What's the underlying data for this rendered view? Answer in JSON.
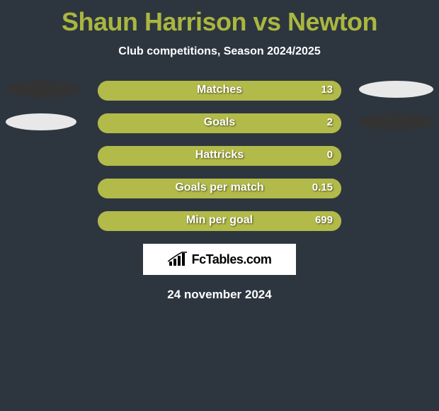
{
  "title": "Shaun Harrison vs Newton",
  "subtitle": "Club competitions, Season 2024/2025",
  "colors": {
    "background": "#2d363f",
    "accent": "#aab63f",
    "white": "#ffffff",
    "oval_left_1": "#333333",
    "oval_left_2": "#e8e8e8",
    "oval_right_1": "#e8e8e8",
    "oval_right_2": "#333333",
    "bar_left": "#9aa334",
    "bar_right": "#b2ba49"
  },
  "ovals": {
    "row0_left_width": 105,
    "row0_right_width": 105,
    "row1_left_width": 100,
    "row1_right_width": 105
  },
  "rows": [
    {
      "label": "Matches",
      "left_pct": 0,
      "right_pct": 100,
      "value_left": "",
      "value_right": "13",
      "show_ovals": true,
      "left_oval_color": "#333333",
      "right_oval_color": "#e8e8e8"
    },
    {
      "label": "Goals",
      "left_pct": 0,
      "right_pct": 100,
      "value_left": "",
      "value_right": "2",
      "show_ovals": true,
      "left_oval_color": "#e8e8e8",
      "right_oval_color": "#333333"
    },
    {
      "label": "Hattricks",
      "left_pct": 0,
      "right_pct": 100,
      "value_left": "",
      "value_right": "0",
      "show_ovals": false
    },
    {
      "label": "Goals per match",
      "left_pct": 0,
      "right_pct": 100,
      "value_left": "",
      "value_right": "0.15",
      "show_ovals": false
    },
    {
      "label": "Min per goal",
      "left_pct": 0,
      "right_pct": 100,
      "value_left": "",
      "value_right": "699",
      "show_ovals": false
    }
  ],
  "logo_text": "FcTables.com",
  "date": "24 november 2024",
  "typography": {
    "title_fontsize": 36,
    "subtitle_fontsize": 16,
    "bar_label_fontsize": 16,
    "bar_value_fontsize": 15,
    "logo_fontsize": 18,
    "date_fontsize": 17
  },
  "bar_geometry": {
    "track_height": 28,
    "track_radius": 14,
    "row_gap": 18,
    "track_inset": 138
  }
}
